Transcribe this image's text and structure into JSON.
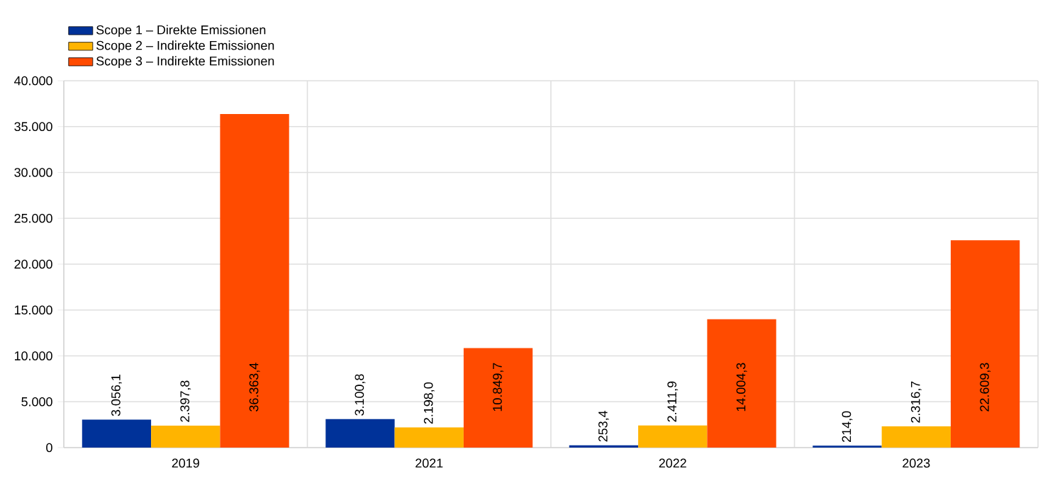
{
  "chart_data": {
    "type": "bar",
    "categories": [
      "2019",
      "2021",
      "2022",
      "2023"
    ],
    "series": [
      {
        "name": "Scope 1 – Direkte Emissionen",
        "color": "#003299",
        "values": [
          3056.1,
          3100.8,
          253.4,
          214.0
        ],
        "value_labels": [
          "3.056,1",
          "3.100,8",
          "253,4",
          "214,0"
        ]
      },
      {
        "name": "Scope 2 – Indirekte Emissionen",
        "color": "#ffb400",
        "values": [
          2397.8,
          2198.0,
          2411.9,
          2316.7
        ],
        "value_labels": [
          "2.397,8",
          "2.198,0",
          "2.411,9",
          "2.316,7"
        ]
      },
      {
        "name": "Scope 3 – Indirekte Emissionen",
        "color": "#ff4b00",
        "values": [
          36363.4,
          10849.7,
          14004.3,
          22609.3
        ],
        "value_labels": [
          "36.363,4",
          "10.849,7",
          "14.004,3",
          "22.609,3"
        ]
      }
    ],
    "ylim": [
      0,
      40000
    ],
    "yticks": [
      {
        "value": 0,
        "label": "0"
      },
      {
        "value": 5000,
        "label": "5.000"
      },
      {
        "value": 10000,
        "label": "10.000"
      },
      {
        "value": 15000,
        "label": "15.000"
      },
      {
        "value": 20000,
        "label": "20.000"
      },
      {
        "value": 25000,
        "label": "25.000"
      },
      {
        "value": 30000,
        "label": "30.000"
      },
      {
        "value": 35000,
        "label": "35.000"
      },
      {
        "value": 40000,
        "label": "40.000"
      }
    ],
    "grid": true,
    "legend": "top left"
  }
}
